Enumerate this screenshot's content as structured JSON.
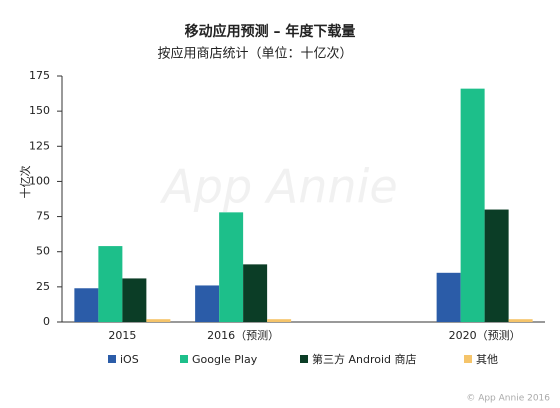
{
  "chart_data": {
    "type": "bar",
    "title": "移动应用预测 – 年度下载量",
    "subtitle": "按应用商店统计（单位：十亿次）",
    "y_label": "十亿次",
    "watermark": "App Annie",
    "copyright": "© App Annie 2016",
    "categories": [
      "2015",
      "2016（预测）",
      null,
      "2020（预测）"
    ],
    "series": [
      {
        "name": "iOS",
        "color": "#2b5ca8",
        "values": [
          24,
          26,
          null,
          35
        ]
      },
      {
        "name": "Google Play",
        "color": "#1dbf8a",
        "values": [
          54,
          78,
          null,
          166
        ]
      },
      {
        "name": "第三方 Android 商店",
        "color": "#0b3d26",
        "values": [
          31,
          41,
          null,
          80
        ]
      },
      {
        "name": "其他",
        "color": "#f5c46a",
        "values": [
          2,
          2,
          null,
          2
        ]
      }
    ],
    "ylim": [
      0,
      175
    ],
    "yticks": [
      0,
      25,
      50,
      75,
      100,
      125,
      150,
      175
    ],
    "grid": false
  }
}
